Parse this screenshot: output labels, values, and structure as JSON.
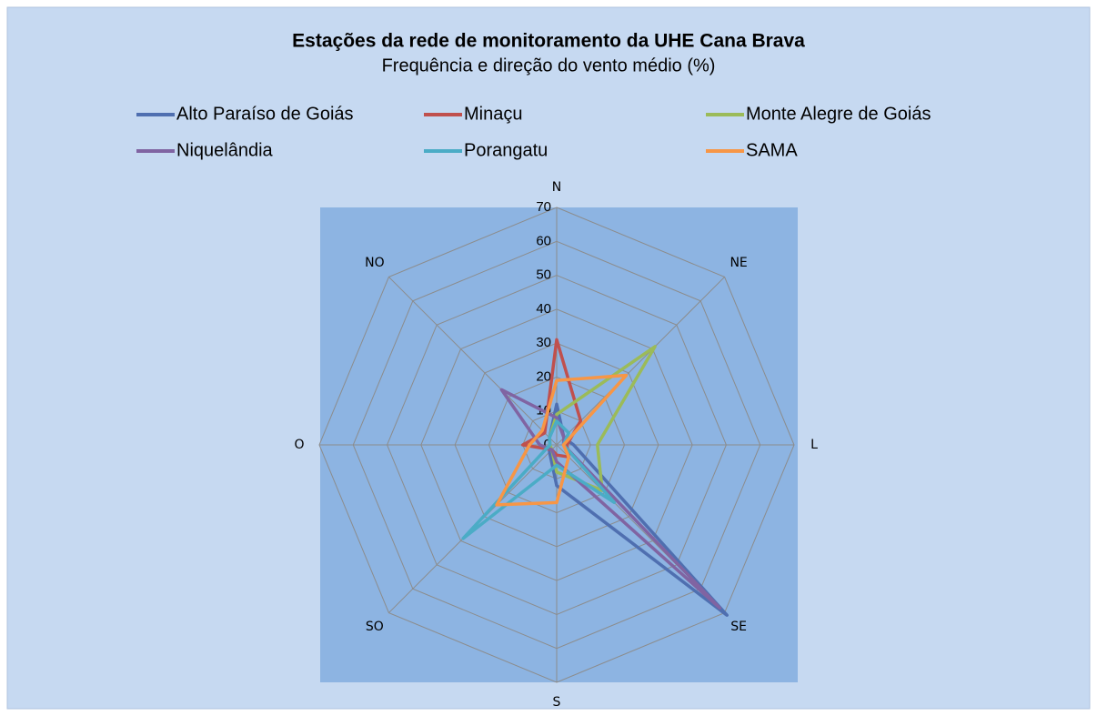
{
  "chart_data": {
    "type": "radar",
    "title": "Estações da rede de monitoramento da UHE Cana Brava",
    "subtitle": "Frequência e direção  do vento médio (%)",
    "categories": [
      "N",
      "NE",
      "L",
      "SE",
      "S",
      "SO",
      "O",
      "NO"
    ],
    "ylim": [
      0,
      70
    ],
    "yticks": [
      0,
      10,
      20,
      30,
      40,
      50,
      60,
      70
    ],
    "grid": true,
    "series": [
      {
        "name": "Alto Paraíso de Goiás",
        "color": "#4f6fb0",
        "values": [
          12,
          3,
          5,
          71,
          12,
          3,
          2,
          3
        ]
      },
      {
        "name": "Minaçu",
        "color": "#c0504d",
        "values": [
          31,
          10,
          3,
          5,
          3,
          2,
          10,
          5
        ]
      },
      {
        "name": "Monte Alegre de Goiás",
        "color": "#9bbb59",
        "values": [
          9,
          41,
          12,
          19,
          8,
          2,
          2,
          3
        ]
      },
      {
        "name": "Niquelândia",
        "color": "#8064a2",
        "values": [
          8,
          3,
          2,
          68,
          5,
          2,
          5,
          23
        ]
      },
      {
        "name": "Porangatu",
        "color": "#4bacc6",
        "values": [
          7,
          5,
          2,
          24,
          6,
          39,
          2,
          3
        ]
      },
      {
        "name": "SAMA",
        "color": "#f79646",
        "values": [
          19,
          29,
          2,
          5,
          17,
          25,
          8,
          6
        ]
      }
    ]
  }
}
